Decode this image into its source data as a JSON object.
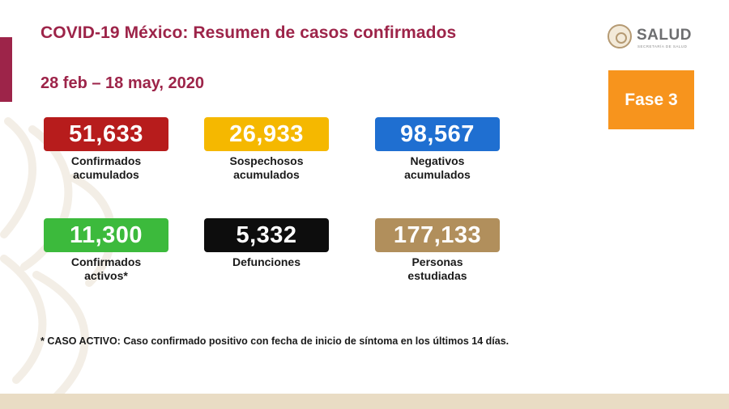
{
  "header": {
    "title": "COVID-19 México: Resumen de casos confirmados",
    "date_range": "28 feb – 18 may, 2020"
  },
  "logo": {
    "name": "SALUD",
    "subtitle": "SECRETARÍA DE SALUD",
    "icon": "seal-icon"
  },
  "phase": {
    "label": "Fase 3",
    "color": "#f7941d"
  },
  "stats": [
    {
      "value": "51,633",
      "label": "Confirmados\nacumulados",
      "color": "#b71c1c"
    },
    {
      "value": "26,933",
      "label": "Sospechosos\nacumulados",
      "color": "#f5b800"
    },
    {
      "value": "98,567",
      "label": "Negativos\nacumulados",
      "color": "#1f6fd1"
    },
    {
      "value": "11,300",
      "label": "Confirmados\nactivos*",
      "color": "#3cba3c"
    },
    {
      "value": "5,332",
      "label": "Defunciones",
      "color": "#0d0d0d"
    },
    {
      "value": "177,133",
      "label": "Personas\nestudiadas",
      "color": "#b18f5c"
    }
  ],
  "footnote": "* CASO ACTIVO: Caso confirmado positivo con fecha de inicio de síntoma en los últimos 14 días.",
  "colors": {
    "accent": "#9d2449",
    "band": "#e9dcc4"
  }
}
